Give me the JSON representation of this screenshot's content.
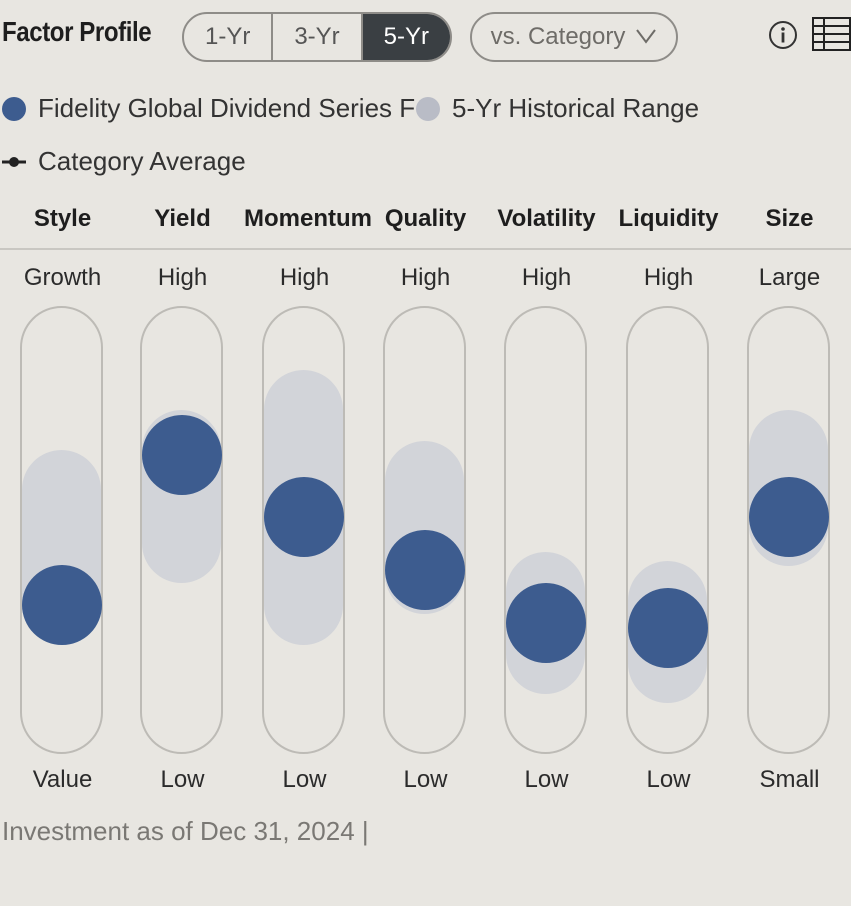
{
  "header": {
    "title": "Factor Profile",
    "periods": [
      "1-Yr",
      "3-Yr",
      "5-Yr"
    ],
    "active_period": "5-Yr",
    "comparison": "vs. Category",
    "info_icon": "info-icon",
    "table_icon": "table-view-icon"
  },
  "legend": {
    "fund": "Fidelity Global Dividend Series F",
    "range": "5-Yr Historical Range",
    "category": "Category Average"
  },
  "colors": {
    "fund": "#3d5c8f",
    "range": "#d2d4d9",
    "active_tab": "#3a3f43"
  },
  "factors": [
    {
      "name": "Style",
      "top": "Growth",
      "bottom": "Value",
      "fund_level": 0.33,
      "range": [
        0.25,
        0.68
      ]
    },
    {
      "name": "Yield",
      "top": "High",
      "bottom": "Low",
      "fund_level": 0.67,
      "range": [
        0.38,
        0.77
      ]
    },
    {
      "name": "Momentum",
      "top": "High",
      "bottom": "Low",
      "fund_level": 0.53,
      "range": [
        0.24,
        0.86
      ]
    },
    {
      "name": "Quality",
      "top": "High",
      "bottom": "Low",
      "fund_level": 0.41,
      "range": [
        0.31,
        0.7
      ]
    },
    {
      "name": "Volatility",
      "top": "High",
      "bottom": "Low",
      "fund_level": 0.29,
      "range": [
        0.13,
        0.45
      ]
    },
    {
      "name": "Liquidity",
      "top": "High",
      "bottom": "Low",
      "fund_level": 0.28,
      "range": [
        0.11,
        0.43
      ]
    },
    {
      "name": "Size",
      "top": "Large",
      "bottom": "Small",
      "fund_level": 0.53,
      "range": [
        0.42,
        0.77
      ]
    }
  ],
  "footer": "Investment as of Dec 31, 2024 |"
}
